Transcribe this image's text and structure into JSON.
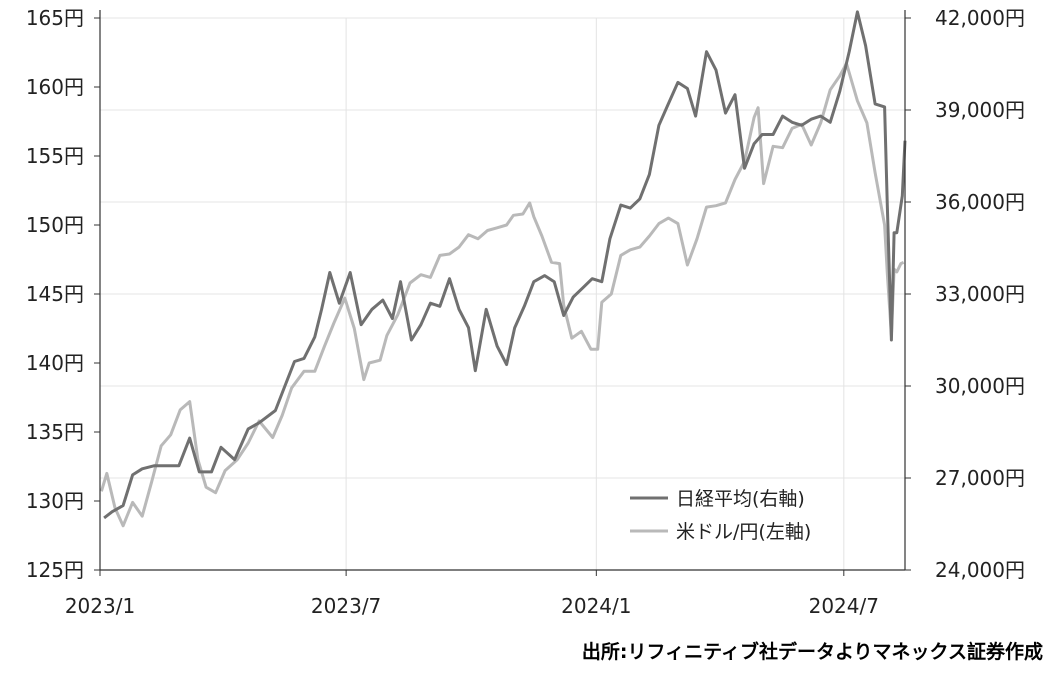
{
  "chart_data": {
    "type": "line",
    "title": "",
    "xlabel": "",
    "ylabel": "",
    "x_range": [
      "2023-01-01",
      "2024-08-15"
    ],
    "x_ticks": [
      {
        "date": "2023-01-01",
        "label": "2023/1"
      },
      {
        "date": "2023-07-01",
        "label": "2023/7"
      },
      {
        "date": "2024-01-01",
        "label": "2024/1"
      },
      {
        "date": "2024-07-01",
        "label": "2024/7"
      }
    ],
    "y_left": {
      "range": [
        125,
        165
      ],
      "ticks": [
        {
          "value": 165,
          "label": "165円"
        },
        {
          "value": 160,
          "label": "160円"
        },
        {
          "value": 155,
          "label": "155円"
        },
        {
          "value": 150,
          "label": "150円"
        },
        {
          "value": 145,
          "label": "145円"
        },
        {
          "value": 140,
          "label": "140円"
        },
        {
          "value": 135,
          "label": "135円"
        },
        {
          "value": 130,
          "label": "130円"
        },
        {
          "value": 125,
          "label": "125円"
        }
      ]
    },
    "y_right": {
      "range": [
        24000,
        42000
      ],
      "ticks": [
        {
          "value": 42000,
          "label": "42,000円"
        },
        {
          "value": 39000,
          "label": "39,000円"
        },
        {
          "value": 36000,
          "label": "36,000円"
        },
        {
          "value": 33000,
          "label": "33,000円"
        },
        {
          "value": 30000,
          "label": "30,000円"
        },
        {
          "value": 27000,
          "label": "27,000円"
        },
        {
          "value": 24000,
          "label": "24,000円"
        }
      ]
    },
    "grid": "vertical at x ticks, horizontal at right-axis ticks",
    "legend_position": "bottom-right",
    "series": [
      {
        "name": "日経平均(右軸)",
        "axis": "right",
        "color": "#707070",
        "points": [
          [
            "2023-01-04",
            25700
          ],
          [
            "2023-01-10",
            25900
          ],
          [
            "2023-01-18",
            26100
          ],
          [
            "2023-01-25",
            27100
          ],
          [
            "2023-02-01",
            27300
          ],
          [
            "2023-02-10",
            27400
          ],
          [
            "2023-02-20",
            27400
          ],
          [
            "2023-02-28",
            27400
          ],
          [
            "2023-03-08",
            28300
          ],
          [
            "2023-03-15",
            27200
          ],
          [
            "2023-03-24",
            27200
          ],
          [
            "2023-03-31",
            28000
          ],
          [
            "2023-04-10",
            27600
          ],
          [
            "2023-04-20",
            28600
          ],
          [
            "2023-04-28",
            28800
          ],
          [
            "2023-05-10",
            29200
          ],
          [
            "2023-05-17",
            30000
          ],
          [
            "2023-05-24",
            30800
          ],
          [
            "2023-05-31",
            30900
          ],
          [
            "2023-06-08",
            31600
          ],
          [
            "2023-06-13",
            32500
          ],
          [
            "2023-06-19",
            33700
          ],
          [
            "2023-06-26",
            32700
          ],
          [
            "2023-07-04",
            33700
          ],
          [
            "2023-07-12",
            32000
          ],
          [
            "2023-07-20",
            32500
          ],
          [
            "2023-07-28",
            32800
          ],
          [
            "2023-08-04",
            32200
          ],
          [
            "2023-08-10",
            33400
          ],
          [
            "2023-08-18",
            31500
          ],
          [
            "2023-08-25",
            32000
          ],
          [
            "2023-09-01",
            32700
          ],
          [
            "2023-09-08",
            32600
          ],
          [
            "2023-09-15",
            33500
          ],
          [
            "2023-09-22",
            32500
          ],
          [
            "2023-09-29",
            31900
          ],
          [
            "2023-10-04",
            30500
          ],
          [
            "2023-10-12",
            32500
          ],
          [
            "2023-10-20",
            31300
          ],
          [
            "2023-10-27",
            30700
          ],
          [
            "2023-11-02",
            31900
          ],
          [
            "2023-11-09",
            32600
          ],
          [
            "2023-11-16",
            33400
          ],
          [
            "2023-11-24",
            33600
          ],
          [
            "2023-12-01",
            33400
          ],
          [
            "2023-12-08",
            32300
          ],
          [
            "2023-12-15",
            32900
          ],
          [
            "2023-12-22",
            33200
          ],
          [
            "2023-12-29",
            33500
          ],
          [
            "2024-01-05",
            33400
          ],
          [
            "2024-01-11",
            34800
          ],
          [
            "2024-01-19",
            35900
          ],
          [
            "2024-01-26",
            35800
          ],
          [
            "2024-02-02",
            36100
          ],
          [
            "2024-02-09",
            36900
          ],
          [
            "2024-02-16",
            38500
          ],
          [
            "2024-02-22",
            39100
          ],
          [
            "2024-03-01",
            39900
          ],
          [
            "2024-03-08",
            39700
          ],
          [
            "2024-03-14",
            38800
          ],
          [
            "2024-03-22",
            40900
          ],
          [
            "2024-03-29",
            40300
          ],
          [
            "2024-04-05",
            38900
          ],
          [
            "2024-04-12",
            39500
          ],
          [
            "2024-04-19",
            37100
          ],
          [
            "2024-04-26",
            37900
          ],
          [
            "2024-05-02",
            38200
          ],
          [
            "2024-05-10",
            38200
          ],
          [
            "2024-05-17",
            38800
          ],
          [
            "2024-05-24",
            38600
          ],
          [
            "2024-05-31",
            38500
          ],
          [
            "2024-06-07",
            38700
          ],
          [
            "2024-06-14",
            38800
          ],
          [
            "2024-06-21",
            38600
          ],
          [
            "2024-06-28",
            39600
          ],
          [
            "2024-07-05",
            40900
          ],
          [
            "2024-07-11",
            42200
          ],
          [
            "2024-07-17",
            41100
          ],
          [
            "2024-07-24",
            39200
          ],
          [
            "2024-07-31",
            39100
          ],
          [
            "2024-08-02",
            35900
          ],
          [
            "2024-08-05",
            31500
          ],
          [
            "2024-08-07",
            35000
          ],
          [
            "2024-08-09",
            35000
          ],
          [
            "2024-08-13",
            36200
          ],
          [
            "2024-08-15",
            38000
          ]
        ]
      },
      {
        "name": "米ドル/円(左軸)",
        "axis": "left",
        "color": "#b9b9b9",
        "points": [
          [
            "2023-01-02",
            130.7
          ],
          [
            "2023-01-06",
            132.0
          ],
          [
            "2023-01-12",
            129.5
          ],
          [
            "2023-01-18",
            128.2
          ],
          [
            "2023-01-25",
            129.9
          ],
          [
            "2023-02-01",
            128.9
          ],
          [
            "2023-02-08",
            131.4
          ],
          [
            "2023-02-15",
            134.0
          ],
          [
            "2023-02-22",
            134.8
          ],
          [
            "2023-03-01",
            136.6
          ],
          [
            "2023-03-08",
            137.2
          ],
          [
            "2023-03-14",
            133.0
          ],
          [
            "2023-03-20",
            131.0
          ],
          [
            "2023-03-27",
            130.6
          ],
          [
            "2023-04-03",
            132.2
          ],
          [
            "2023-04-12",
            133.0
          ],
          [
            "2023-04-20",
            134.2
          ],
          [
            "2023-04-28",
            135.8
          ],
          [
            "2023-05-08",
            134.6
          ],
          [
            "2023-05-15",
            136.2
          ],
          [
            "2023-05-22",
            138.2
          ],
          [
            "2023-05-31",
            139.4
          ],
          [
            "2023-06-08",
            139.4
          ],
          [
            "2023-06-15",
            141.2
          ],
          [
            "2023-06-22",
            142.9
          ],
          [
            "2023-06-30",
            144.7
          ],
          [
            "2023-07-07",
            142.5
          ],
          [
            "2023-07-14",
            138.8
          ],
          [
            "2023-07-18",
            140.0
          ],
          [
            "2023-07-26",
            140.2
          ],
          [
            "2023-07-31",
            142.0
          ],
          [
            "2023-08-08",
            143.5
          ],
          [
            "2023-08-17",
            145.8
          ],
          [
            "2023-08-25",
            146.4
          ],
          [
            "2023-09-01",
            146.2
          ],
          [
            "2023-09-08",
            147.8
          ],
          [
            "2023-09-15",
            147.9
          ],
          [
            "2023-09-22",
            148.4
          ],
          [
            "2023-09-29",
            149.3
          ],
          [
            "2023-10-06",
            149.0
          ],
          [
            "2023-10-13",
            149.6
          ],
          [
            "2023-10-20",
            149.8
          ],
          [
            "2023-10-27",
            150.0
          ],
          [
            "2023-11-01",
            150.7
          ],
          [
            "2023-11-08",
            150.8
          ],
          [
            "2023-11-13",
            151.6
          ],
          [
            "2023-11-16",
            150.6
          ],
          [
            "2023-11-22",
            149.2
          ],
          [
            "2023-11-29",
            147.3
          ],
          [
            "2023-12-05",
            147.2
          ],
          [
            "2023-12-08",
            144.2
          ],
          [
            "2023-12-14",
            141.8
          ],
          [
            "2023-12-21",
            142.3
          ],
          [
            "2023-12-28",
            141.0
          ],
          [
            "2024-01-02",
            141.0
          ],
          [
            "2024-01-05",
            144.4
          ],
          [
            "2024-01-12",
            145.0
          ],
          [
            "2024-01-19",
            147.8
          ],
          [
            "2024-01-26",
            148.2
          ],
          [
            "2024-02-02",
            148.4
          ],
          [
            "2024-02-09",
            149.2
          ],
          [
            "2024-02-16",
            150.1
          ],
          [
            "2024-02-23",
            150.5
          ],
          [
            "2024-03-01",
            150.1
          ],
          [
            "2024-03-08",
            147.1
          ],
          [
            "2024-03-15",
            149.0
          ],
          [
            "2024-03-22",
            151.3
          ],
          [
            "2024-03-29",
            151.4
          ],
          [
            "2024-04-05",
            151.6
          ],
          [
            "2024-04-12",
            153.3
          ],
          [
            "2024-04-19",
            154.6
          ],
          [
            "2024-04-26",
            157.8
          ],
          [
            "2024-04-29",
            158.5
          ],
          [
            "2024-05-03",
            153.0
          ],
          [
            "2024-05-10",
            155.7
          ],
          [
            "2024-05-17",
            155.6
          ],
          [
            "2024-05-24",
            157.0
          ],
          [
            "2024-05-31",
            157.3
          ],
          [
            "2024-06-07",
            155.8
          ],
          [
            "2024-06-14",
            157.4
          ],
          [
            "2024-06-21",
            159.8
          ],
          [
            "2024-06-28",
            160.8
          ],
          [
            "2024-07-03",
            161.7
          ],
          [
            "2024-07-11",
            159.0
          ],
          [
            "2024-07-18",
            157.4
          ],
          [
            "2024-07-24",
            153.8
          ],
          [
            "2024-07-31",
            150.0
          ],
          [
            "2024-08-02",
            146.5
          ],
          [
            "2024-08-05",
            142.0
          ],
          [
            "2024-08-07",
            146.8
          ],
          [
            "2024-08-09",
            146.6
          ],
          [
            "2024-08-12",
            147.2
          ],
          [
            "2024-08-14",
            147.3
          ]
        ]
      }
    ]
  },
  "source_note": "出所:リフィニティブ社データよりマネックス証券作成"
}
